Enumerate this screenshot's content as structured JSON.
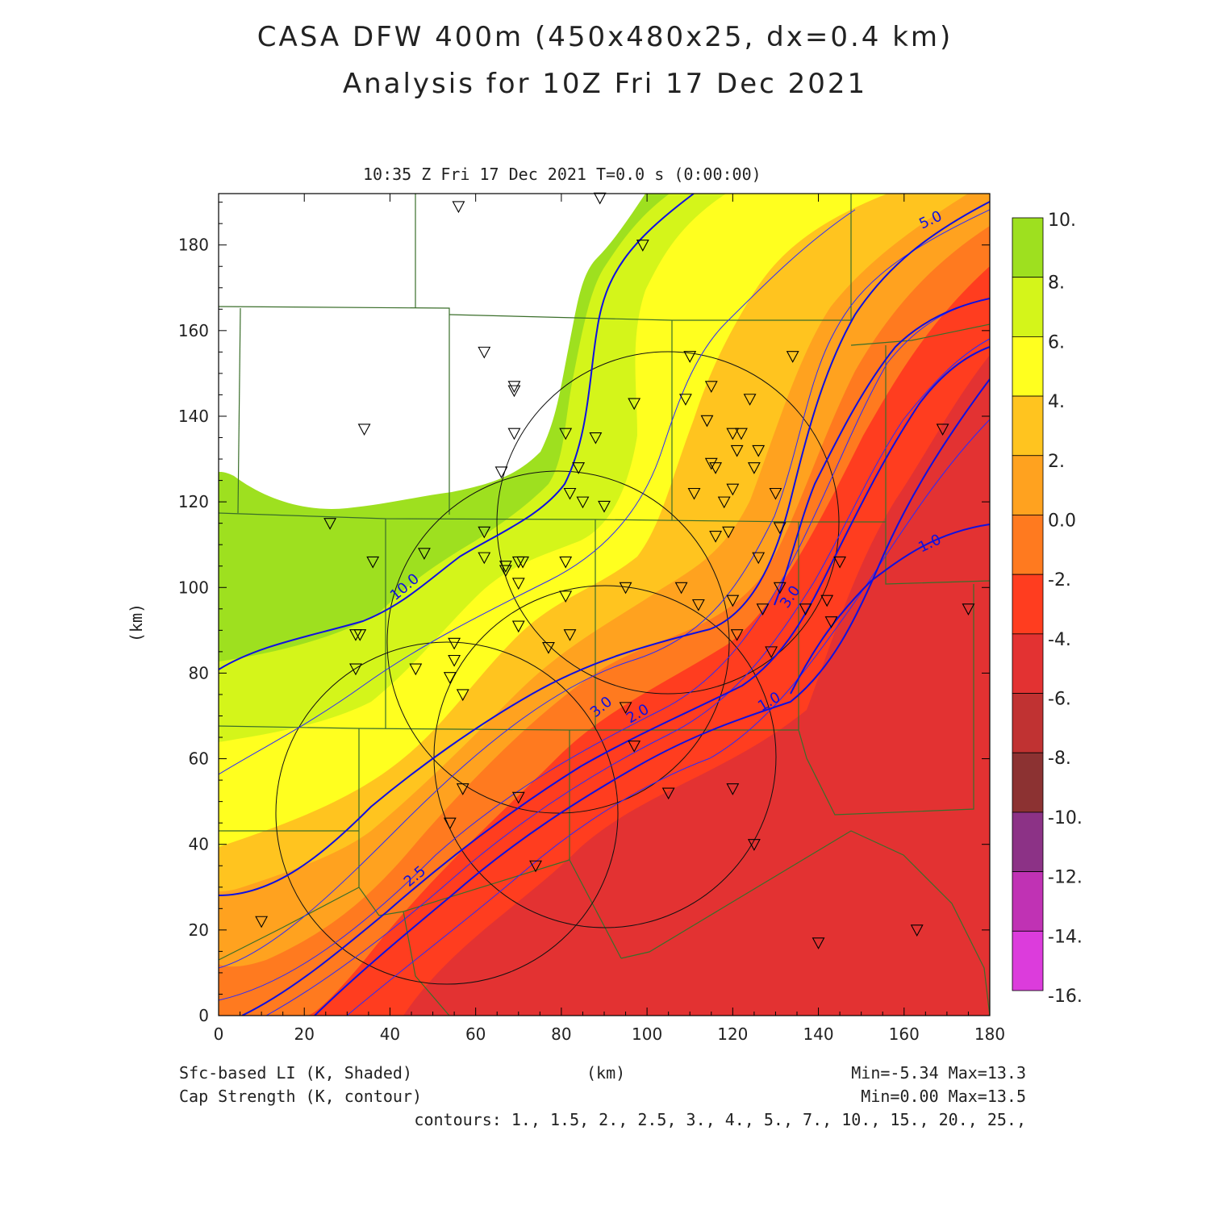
{
  "header": {
    "title_line1": "CASA DFW 400m (450x480x25, dx=0.4 km)",
    "title_line2": "Analysis for 10Z Fri 17 Dec 2021",
    "timestamp": "10:35 Z Fri 17 Dec 2021    T=0.0 s (0:00:00)"
  },
  "axes": {
    "x_unit": "(km)",
    "y_unit": "(km)",
    "x_ticks": [
      0,
      20,
      40,
      60,
      80,
      100,
      120,
      140,
      160,
      180
    ],
    "y_ticks": [
      0,
      20,
      40,
      60,
      80,
      100,
      120,
      140,
      160,
      180
    ],
    "x_range": [
      0,
      180
    ],
    "y_range": [
      0,
      192
    ]
  },
  "colorbar": {
    "labels": [
      "10.",
      "8.",
      "6.",
      "4.",
      "2.",
      "0.0",
      "-2.",
      "-4.",
      "-6.",
      "-8.",
      "-10.",
      "-12.",
      "-14.",
      "-16."
    ],
    "colors": [
      "#9ee01f",
      "#d4f51a",
      "#ffff1f",
      "#ffc41f",
      "#ffa21f",
      "#ff7a1f",
      "#ff3d1f",
      "#e33232",
      "#c03232",
      "#8c3232",
      "#8c3286",
      "#c032b4",
      "#dc3cdc"
    ]
  },
  "footer": {
    "field1": "Sfc-based LI (K, Shaded)",
    "field2": "Cap Strength (K, contour)",
    "range1": "Min=-5.34 Max=13.3",
    "range2": "Min=0.00 Max=13.5",
    "contours": "contours: 1., 1.5, 2., 2.5, 3., 4., 5., 7., 10., 15., 20., 25.,"
  },
  "contour_labels": [
    "5.0",
    "10.0",
    "3.0",
    "1.0",
    "3.0",
    "2.0",
    "1.0",
    "2.5"
  ],
  "stations": [
    [
      56,
      189
    ],
    [
      89,
      191
    ],
    [
      99,
      180
    ],
    [
      62,
      155
    ],
    [
      69,
      147
    ],
    [
      69,
      146
    ],
    [
      34,
      137
    ],
    [
      97,
      143
    ],
    [
      69,
      136
    ],
    [
      81,
      136
    ],
    [
      88,
      135
    ],
    [
      66,
      127
    ],
    [
      84,
      128
    ],
    [
      82,
      122
    ],
    [
      85,
      120
    ],
    [
      90,
      119
    ],
    [
      110,
      154
    ],
    [
      109,
      144
    ],
    [
      115,
      147
    ],
    [
      114,
      139
    ],
    [
      124,
      144
    ],
    [
      120,
      136
    ],
    [
      122,
      136
    ],
    [
      121,
      132
    ],
    [
      126,
      132
    ],
    [
      115,
      129
    ],
    [
      116,
      128
    ],
    [
      125,
      128
    ],
    [
      111,
      122
    ],
    [
      118,
      120
    ],
    [
      120,
      123
    ],
    [
      130,
      122
    ],
    [
      134,
      154
    ],
    [
      26,
      115
    ],
    [
      36,
      106
    ],
    [
      48,
      108
    ],
    [
      62,
      113
    ],
    [
      62,
      107
    ],
    [
      67,
      105
    ],
    [
      67,
      104
    ],
    [
      70,
      106
    ],
    [
      71,
      106
    ],
    [
      70,
      101
    ],
    [
      81,
      106
    ],
    [
      81,
      98
    ],
    [
      95,
      100
    ],
    [
      108,
      100
    ],
    [
      112,
      96
    ],
    [
      116,
      112
    ],
    [
      119,
      113
    ],
    [
      126,
      107
    ],
    [
      131,
      114
    ],
    [
      131,
      100
    ],
    [
      120,
      97
    ],
    [
      32,
      89
    ],
    [
      33,
      89
    ],
    [
      55,
      87
    ],
    [
      55,
      83
    ],
    [
      32,
      81
    ],
    [
      46,
      81
    ],
    [
      54,
      79
    ],
    [
      57,
      75
    ],
    [
      70,
      91
    ],
    [
      77,
      86
    ],
    [
      82,
      89
    ],
    [
      121,
      89
    ],
    [
      127,
      95
    ],
    [
      129,
      85
    ],
    [
      137,
      95
    ],
    [
      142,
      97
    ],
    [
      145,
      106
    ],
    [
      143,
      92
    ],
    [
      169,
      137
    ],
    [
      175,
      95
    ],
    [
      95,
      72
    ],
    [
      97,
      63
    ],
    [
      57,
      53
    ],
    [
      70,
      51
    ],
    [
      54,
      45
    ],
    [
      74,
      35
    ],
    [
      105,
      52
    ],
    [
      120,
      53
    ],
    [
      125,
      40
    ],
    [
      10,
      22
    ],
    [
      140,
      17
    ],
    [
      163,
      20
    ]
  ]
}
